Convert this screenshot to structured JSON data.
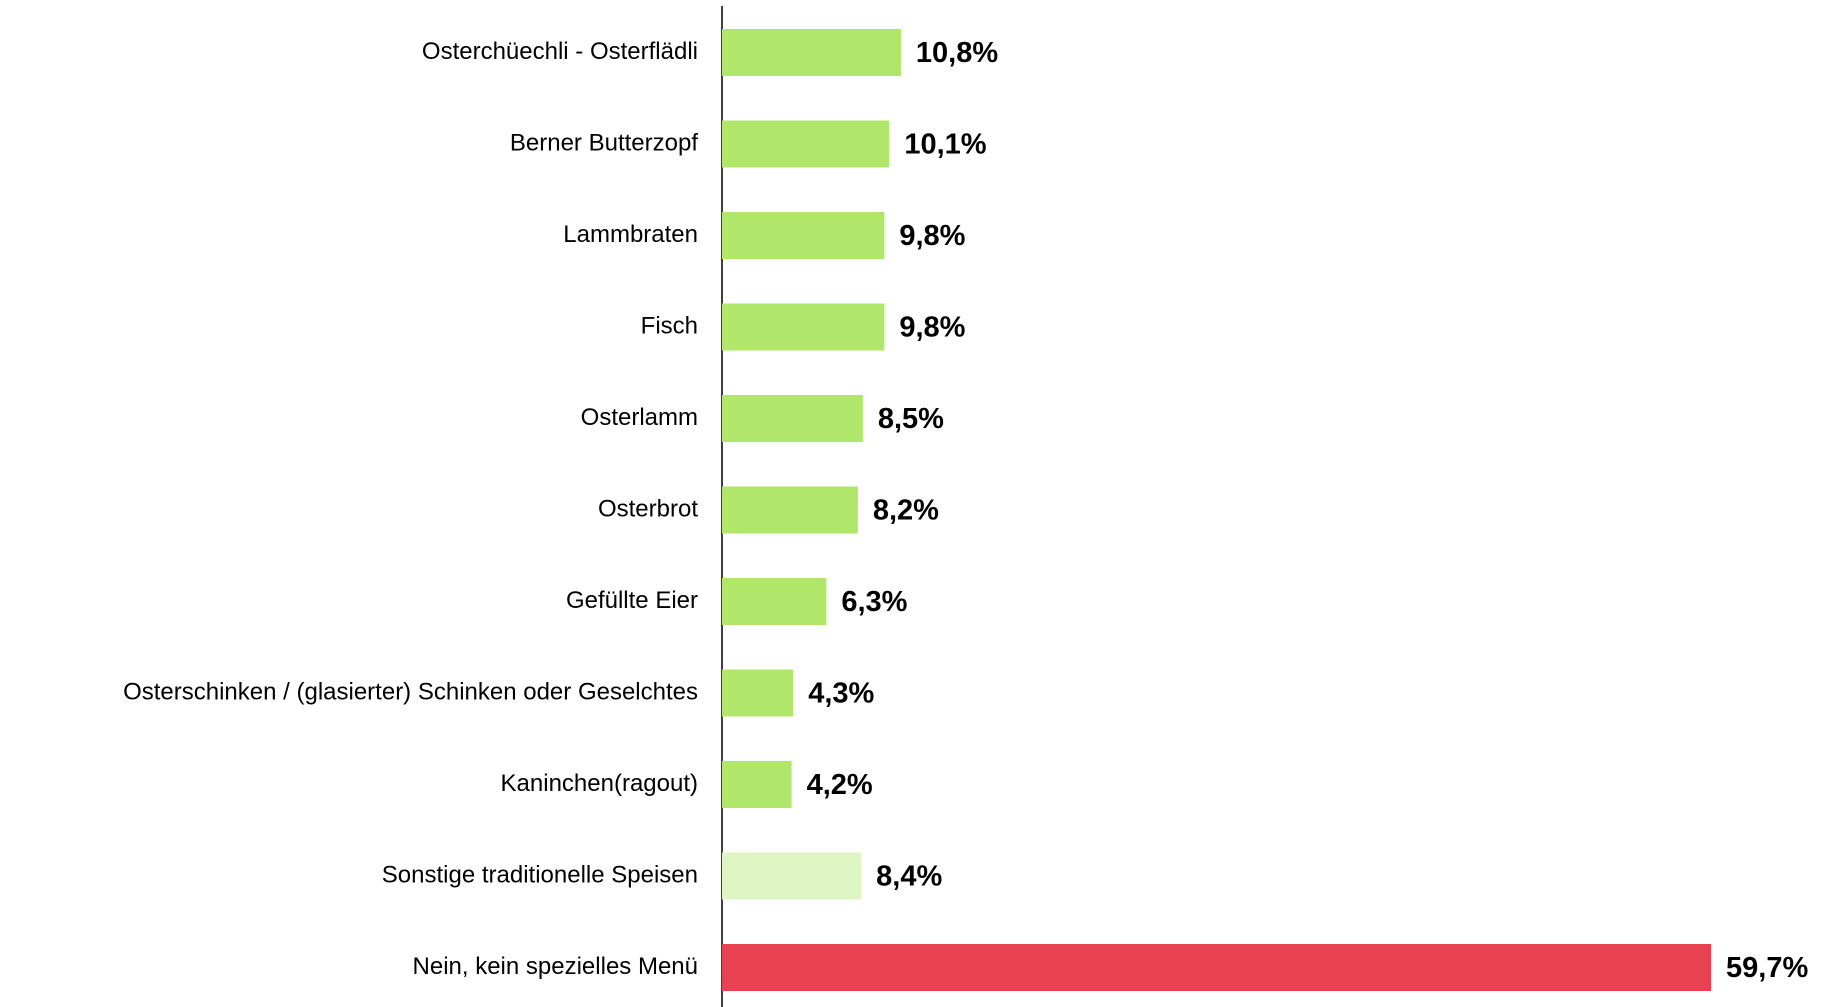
{
  "chart_data": {
    "type": "bar",
    "orientation": "horizontal",
    "categories": [
      "Osterchüechli - Osterflädli",
      "Berner Butterzopf",
      "Lammbraten",
      "Fisch",
      "Osterlamm",
      "Osterbrot",
      "Gefüllte Eier",
      "Osterschinken / (glasierter) Schinken oder Geselchtes",
      "Kaninchen(ragout)",
      "Sonstige traditionelle Speisen",
      "Nein, kein spezielles Menü"
    ],
    "values": [
      10.8,
      10.1,
      9.8,
      9.8,
      8.5,
      8.2,
      6.3,
      4.3,
      4.2,
      8.4,
      59.7
    ],
    "value_labels": [
      "10,8%",
      "10,1%",
      "9,8%",
      "9,8%",
      "8,5%",
      "8,2%",
      "6,3%",
      "4,3%",
      "4,2%",
      "8,4%",
      "59,7%"
    ],
    "colors": [
      "#b0e66a",
      "#b0e66a",
      "#b0e66a",
      "#b0e66a",
      "#b0e66a",
      "#b0e66a",
      "#b0e66a",
      "#b0e66a",
      "#b0e66a",
      "#dcf5c2",
      "#e84152"
    ],
    "xlim": [
      0,
      60
    ]
  }
}
